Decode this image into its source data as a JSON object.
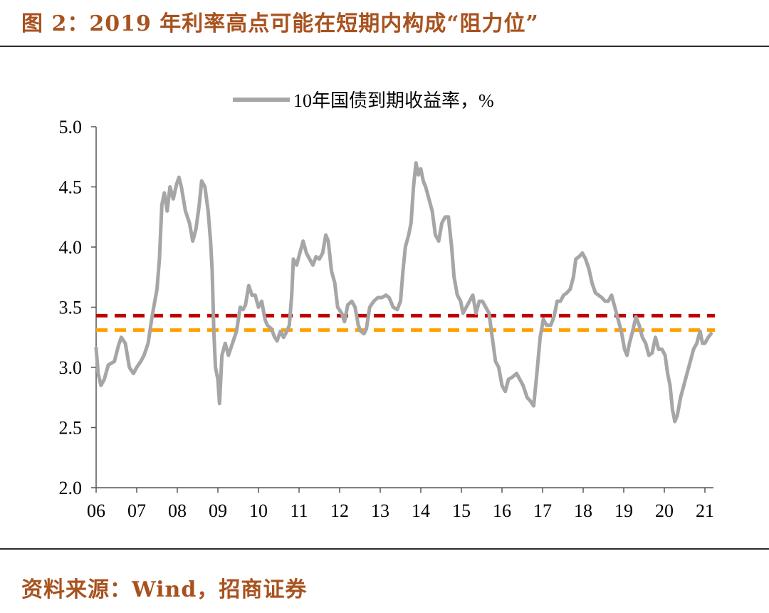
{
  "figure": {
    "title": "图 2：2019 年利率高点可能在短期内构成“阻力位”",
    "source": "资料来源：Wind，招商证券"
  },
  "colors": {
    "title_text": "#a8521f",
    "series_line": "#a6a6a6",
    "resistance_upper": "#c00000",
    "resistance_lower": "#ffa000"
  },
  "chart_data": {
    "type": "line",
    "legend": {
      "label": "10年国债到期收益率，%",
      "position": "top-center"
    },
    "y_axis": {
      "min": 2.0,
      "max": 5.0,
      "ticks": [
        "2.0",
        "2.5",
        "3.0",
        "3.5",
        "4.0",
        "4.5",
        "5.0"
      ]
    },
    "x_axis": {
      "min": 2006.0,
      "max": 2021.2,
      "tick_labels": [
        "06",
        "07",
        "08",
        "09",
        "10",
        "11",
        "12",
        "13",
        "14",
        "15",
        "16",
        "17",
        "18",
        "19",
        "20",
        "21"
      ]
    },
    "grid": false,
    "reference_lines": [
      {
        "name": "upper",
        "value": 3.43,
        "style": "dashed"
      },
      {
        "name": "lower",
        "value": 3.31,
        "style": "dashed"
      }
    ],
    "series": [
      {
        "name": "10年国债到期收益率，%",
        "points": [
          [
            2006.0,
            3.16
          ],
          [
            2006.05,
            2.95
          ],
          [
            2006.12,
            2.85
          ],
          [
            2006.2,
            2.9
          ],
          [
            2006.3,
            3.02
          ],
          [
            2006.45,
            3.05
          ],
          [
            2006.55,
            3.18
          ],
          [
            2006.62,
            3.25
          ],
          [
            2006.72,
            3.2
          ],
          [
            2006.82,
            3.0
          ],
          [
            2006.92,
            2.95
          ],
          [
            2007.0,
            3.0
          ],
          [
            2007.1,
            3.05
          ],
          [
            2007.18,
            3.1
          ],
          [
            2007.28,
            3.2
          ],
          [
            2007.36,
            3.38
          ],
          [
            2007.42,
            3.5
          ],
          [
            2007.5,
            3.65
          ],
          [
            2007.56,
            3.9
          ],
          [
            2007.62,
            4.35
          ],
          [
            2007.68,
            4.45
          ],
          [
            2007.75,
            4.3
          ],
          [
            2007.82,
            4.5
          ],
          [
            2007.9,
            4.4
          ],
          [
            2007.98,
            4.52
          ],
          [
            2008.04,
            4.58
          ],
          [
            2008.1,
            4.5
          ],
          [
            2008.2,
            4.3
          ],
          [
            2008.3,
            4.2
          ],
          [
            2008.38,
            4.05
          ],
          [
            2008.46,
            4.15
          ],
          [
            2008.54,
            4.35
          ],
          [
            2008.6,
            4.55
          ],
          [
            2008.68,
            4.5
          ],
          [
            2008.76,
            4.3
          ],
          [
            2008.82,
            4.05
          ],
          [
            2008.86,
            3.8
          ],
          [
            2008.9,
            3.3
          ],
          [
            2008.94,
            3.0
          ],
          [
            2009.0,
            2.9
          ],
          [
            2009.04,
            2.7
          ],
          [
            2009.1,
            3.1
          ],
          [
            2009.18,
            3.2
          ],
          [
            2009.26,
            3.1
          ],
          [
            2009.36,
            3.2
          ],
          [
            2009.46,
            3.3
          ],
          [
            2009.55,
            3.5
          ],
          [
            2009.62,
            3.48
          ],
          [
            2009.68,
            3.52
          ],
          [
            2009.76,
            3.68
          ],
          [
            2009.84,
            3.6
          ],
          [
            2009.92,
            3.6
          ],
          [
            2010.0,
            3.5
          ],
          [
            2010.08,
            3.55
          ],
          [
            2010.16,
            3.4
          ],
          [
            2010.22,
            3.35
          ],
          [
            2010.32,
            3.32
          ],
          [
            2010.4,
            3.25
          ],
          [
            2010.46,
            3.22
          ],
          [
            2010.54,
            3.3
          ],
          [
            2010.62,
            3.25
          ],
          [
            2010.7,
            3.3
          ],
          [
            2010.76,
            3.35
          ],
          [
            2010.82,
            3.6
          ],
          [
            2010.86,
            3.9
          ],
          [
            2010.94,
            3.85
          ],
          [
            2011.02,
            3.95
          ],
          [
            2011.1,
            4.05
          ],
          [
            2011.18,
            3.95
          ],
          [
            2011.26,
            3.9
          ],
          [
            2011.34,
            3.85
          ],
          [
            2011.42,
            3.92
          ],
          [
            2011.5,
            3.9
          ],
          [
            2011.58,
            3.95
          ],
          [
            2011.66,
            4.1
          ],
          [
            2011.72,
            4.05
          ],
          [
            2011.8,
            3.8
          ],
          [
            2011.88,
            3.7
          ],
          [
            2011.95,
            3.5
          ],
          [
            2012.05,
            3.45
          ],
          [
            2012.12,
            3.38
          ],
          [
            2012.2,
            3.52
          ],
          [
            2012.3,
            3.55
          ],
          [
            2012.38,
            3.5
          ],
          [
            2012.46,
            3.35
          ],
          [
            2012.52,
            3.3
          ],
          [
            2012.6,
            3.28
          ],
          [
            2012.66,
            3.32
          ],
          [
            2012.74,
            3.5
          ],
          [
            2012.84,
            3.55
          ],
          [
            2012.94,
            3.58
          ],
          [
            2013.04,
            3.58
          ],
          [
            2013.14,
            3.6
          ],
          [
            2013.22,
            3.58
          ],
          [
            2013.32,
            3.5
          ],
          [
            2013.42,
            3.48
          ],
          [
            2013.5,
            3.55
          ],
          [
            2013.56,
            3.8
          ],
          [
            2013.62,
            4.0
          ],
          [
            2013.7,
            4.1
          ],
          [
            2013.76,
            4.2
          ],
          [
            2013.82,
            4.5
          ],
          [
            2013.88,
            4.7
          ],
          [
            2013.94,
            4.6
          ],
          [
            2014.0,
            4.65
          ],
          [
            2014.06,
            4.55
          ],
          [
            2014.12,
            4.5
          ],
          [
            2014.2,
            4.4
          ],
          [
            2014.28,
            4.3
          ],
          [
            2014.36,
            4.1
          ],
          [
            2014.44,
            4.05
          ],
          [
            2014.52,
            4.2
          ],
          [
            2014.6,
            4.25
          ],
          [
            2014.68,
            4.25
          ],
          [
            2014.76,
            4.0
          ],
          [
            2014.82,
            3.75
          ],
          [
            2014.9,
            3.6
          ],
          [
            2014.98,
            3.55
          ],
          [
            2015.04,
            3.45
          ],
          [
            2015.12,
            3.5
          ],
          [
            2015.2,
            3.55
          ],
          [
            2015.28,
            3.6
          ],
          [
            2015.36,
            3.45
          ],
          [
            2015.44,
            3.55
          ],
          [
            2015.52,
            3.55
          ],
          [
            2015.6,
            3.5
          ],
          [
            2015.68,
            3.45
          ],
          [
            2015.76,
            3.25
          ],
          [
            2015.84,
            3.05
          ],
          [
            2015.92,
            3.0
          ],
          [
            2016.0,
            2.85
          ],
          [
            2016.08,
            2.8
          ],
          [
            2016.16,
            2.9
          ],
          [
            2016.26,
            2.92
          ],
          [
            2016.36,
            2.95
          ],
          [
            2016.44,
            2.9
          ],
          [
            2016.52,
            2.85
          ],
          [
            2016.62,
            2.75
          ],
          [
            2016.7,
            2.72
          ],
          [
            2016.78,
            2.68
          ],
          [
            2016.86,
            2.95
          ],
          [
            2016.94,
            3.25
          ],
          [
            2017.02,
            3.4
          ],
          [
            2017.1,
            3.35
          ],
          [
            2017.2,
            3.35
          ],
          [
            2017.28,
            3.42
          ],
          [
            2017.36,
            3.55
          ],
          [
            2017.44,
            3.55
          ],
          [
            2017.52,
            3.6
          ],
          [
            2017.6,
            3.62
          ],
          [
            2017.68,
            3.65
          ],
          [
            2017.76,
            3.75
          ],
          [
            2017.82,
            3.9
          ],
          [
            2017.9,
            3.92
          ],
          [
            2017.98,
            3.95
          ],
          [
            2018.06,
            3.9
          ],
          [
            2018.14,
            3.82
          ],
          [
            2018.22,
            3.7
          ],
          [
            2018.3,
            3.62
          ],
          [
            2018.38,
            3.6
          ],
          [
            2018.46,
            3.58
          ],
          [
            2018.54,
            3.55
          ],
          [
            2018.62,
            3.55
          ],
          [
            2018.7,
            3.6
          ],
          [
            2018.78,
            3.5
          ],
          [
            2018.86,
            3.4
          ],
          [
            2018.94,
            3.3
          ],
          [
            2019.02,
            3.15
          ],
          [
            2019.08,
            3.1
          ],
          [
            2019.14,
            3.2
          ],
          [
            2019.22,
            3.3
          ],
          [
            2019.3,
            3.42
          ],
          [
            2019.38,
            3.35
          ],
          [
            2019.46,
            3.25
          ],
          [
            2019.54,
            3.2
          ],
          [
            2019.62,
            3.1
          ],
          [
            2019.7,
            3.12
          ],
          [
            2019.78,
            3.25
          ],
          [
            2019.86,
            3.15
          ],
          [
            2019.94,
            3.15
          ],
          [
            2020.02,
            3.1
          ],
          [
            2020.08,
            2.95
          ],
          [
            2020.14,
            2.85
          ],
          [
            2020.2,
            2.65
          ],
          [
            2020.26,
            2.55
          ],
          [
            2020.32,
            2.6
          ],
          [
            2020.4,
            2.75
          ],
          [
            2020.48,
            2.85
          ],
          [
            2020.56,
            2.95
          ],
          [
            2020.64,
            3.05
          ],
          [
            2020.72,
            3.15
          ],
          [
            2020.8,
            3.2
          ],
          [
            2020.88,
            3.3
          ],
          [
            2020.94,
            3.2
          ],
          [
            2021.0,
            3.2
          ],
          [
            2021.08,
            3.25
          ],
          [
            2021.15,
            3.28
          ]
        ]
      }
    ]
  }
}
